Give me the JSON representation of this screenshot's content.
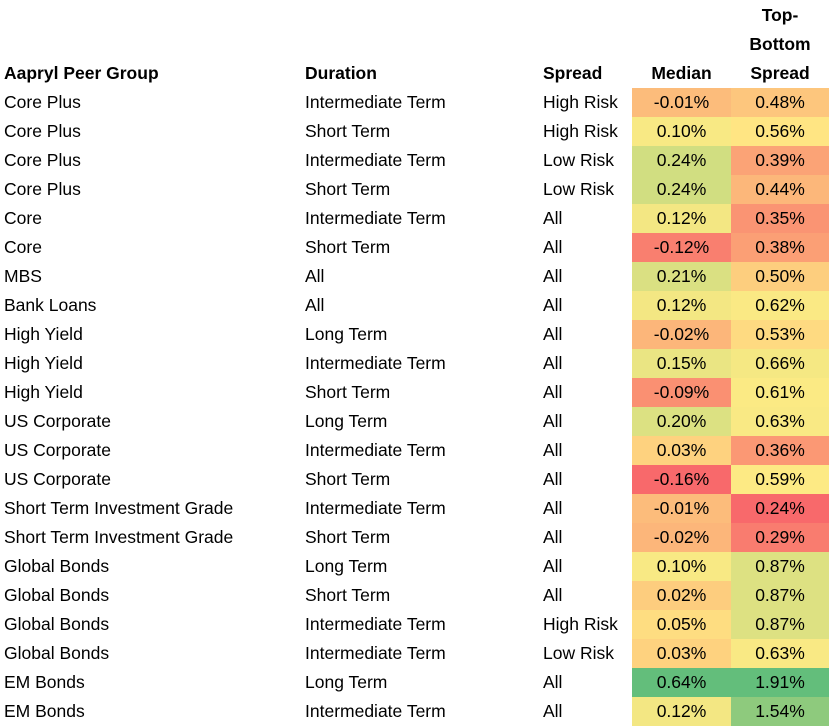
{
  "table": {
    "header": [
      "Aapryl Peer Group",
      "Duration",
      "Spread",
      "Median",
      "Top-Bottom Spread"
    ],
    "rows": [
      [
        "Core Plus",
        "Intermediate Term",
        "High Risk",
        "-0.01%",
        "0.48%"
      ],
      [
        "Core Plus",
        "Short Term",
        "High Risk",
        "0.10%",
        "0.56%"
      ],
      [
        "Core Plus",
        "Intermediate Term",
        "Low Risk",
        "0.24%",
        "0.39%"
      ],
      [
        "Core Plus",
        "Short Term",
        "Low Risk",
        "0.24%",
        "0.44%"
      ],
      [
        "Core",
        "Intermediate Term",
        "All",
        "0.12%",
        "0.35%"
      ],
      [
        "Core",
        "Short Term",
        "All",
        "-0.12%",
        "0.38%"
      ],
      [
        "MBS",
        "All",
        "All",
        "0.21%",
        "0.50%"
      ],
      [
        "Bank Loans",
        "All",
        "All",
        "0.12%",
        "0.62%"
      ],
      [
        "High Yield",
        "Long Term",
        "All",
        "-0.02%",
        "0.53%"
      ],
      [
        "High Yield",
        "Intermediate Term",
        "All",
        "0.15%",
        "0.66%"
      ],
      [
        "High Yield",
        "Short Term",
        "All",
        "-0.09%",
        "0.61%"
      ],
      [
        "US Corporate",
        "Long Term",
        "All",
        "0.20%",
        "0.63%"
      ],
      [
        "US Corporate",
        "Intermediate Term",
        "All",
        "0.03%",
        "0.36%"
      ],
      [
        "US Corporate",
        "Short Term",
        "All",
        "-0.16%",
        "0.59%"
      ],
      [
        "Short Term Investment Grade",
        "Intermediate Term",
        "All",
        "-0.01%",
        "0.24%"
      ],
      [
        "Short Term Investment Grade",
        "Short Term",
        "All",
        "-0.02%",
        "0.29%"
      ],
      [
        "Global Bonds",
        "Long Term",
        "All",
        "0.10%",
        "0.87%"
      ],
      [
        "Global Bonds",
        "Short Term",
        "All",
        "0.02%",
        "0.87%"
      ],
      [
        "Global Bonds",
        "Intermediate Term",
        "High Risk",
        "0.05%",
        "0.87%"
      ],
      [
        "Global Bonds",
        "Intermediate Term",
        "Low Risk",
        "0.03%",
        "0.63%"
      ],
      [
        "EM Bonds",
        "Long Term",
        "All",
        "0.64%",
        "1.91%"
      ],
      [
        "EM Bonds",
        "Intermediate Term",
        "All",
        "0.12%",
        "1.54%"
      ]
    ]
  }
}
